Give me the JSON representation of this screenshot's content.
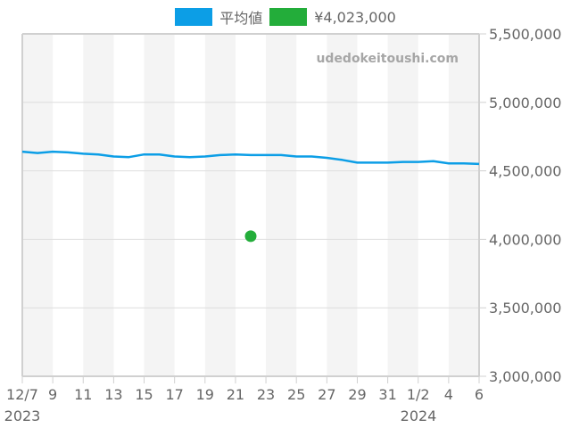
{
  "legend": {
    "items": [
      {
        "label": "平均値",
        "color": "#0c9ee6"
      },
      {
        "label": "¥4,023,000",
        "color": "#23ad3a"
      }
    ]
  },
  "watermark": "udedokeitoushi.com",
  "y_axis": {
    "ticks": [
      "5,500,000",
      "5,000,000",
      "4,500,000",
      "4,000,000",
      "3,500,000",
      "3,000,000"
    ]
  },
  "x_axis": {
    "ticks": [
      "12/7",
      "9",
      "11",
      "13",
      "15",
      "17",
      "19",
      "21",
      "23",
      "25",
      "27",
      "29",
      "31",
      "1/2",
      "4",
      "6"
    ],
    "year_labels": [
      "2023",
      "2024"
    ]
  },
  "chart_data": {
    "type": "line",
    "title": "",
    "xlabel": "",
    "ylabel": "",
    "ylim": [
      3000000,
      5500000
    ],
    "x_range": [
      "2023-12-07",
      "2024-01-06"
    ],
    "grid": true,
    "legend_position": "top",
    "x": [
      "12/7",
      "12/8",
      "12/9",
      "12/10",
      "12/11",
      "12/12",
      "12/13",
      "12/14",
      "12/15",
      "12/16",
      "12/17",
      "12/18",
      "12/19",
      "12/20",
      "12/21",
      "12/22",
      "12/23",
      "12/24",
      "12/25",
      "12/26",
      "12/27",
      "12/28",
      "12/29",
      "12/30",
      "12/31",
      "1/1",
      "1/2",
      "1/3",
      "1/4",
      "1/5",
      "1/6"
    ],
    "series": [
      {
        "name": "平均値",
        "type": "line",
        "color": "#0c9ee6",
        "values": [
          4640000,
          4630000,
          4640000,
          4635000,
          4625000,
          4620000,
          4605000,
          4600000,
          4620000,
          4620000,
          4605000,
          4600000,
          4605000,
          4615000,
          4620000,
          4615000,
          4615000,
          4615000,
          4605000,
          4605000,
          4595000,
          4580000,
          4560000,
          4560000,
          4560000,
          4565000,
          4565000,
          4570000,
          4555000,
          4555000,
          4550000
        ]
      },
      {
        "name": "¥4,023,000",
        "type": "scatter",
        "color": "#23ad3a",
        "points": [
          {
            "x": "12/22",
            "y": 4023000
          }
        ]
      }
    ]
  }
}
